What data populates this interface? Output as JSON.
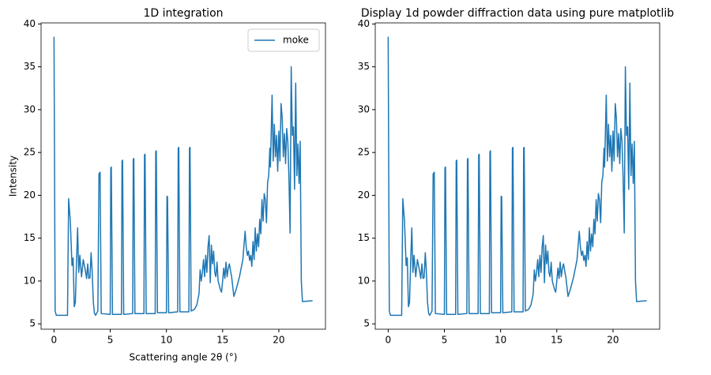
{
  "chart_data": [
    {
      "type": "line",
      "title": "1D integration",
      "xlabel": "Scattering angle 2θ (°)",
      "ylabel": "Intensity",
      "xlim": [
        -1.15,
        24.15
      ],
      "ylim": [
        4.375,
        40.125
      ],
      "xticks": [
        0,
        5,
        10,
        15,
        20
      ],
      "yticks": [
        5,
        10,
        15,
        20,
        25,
        30,
        35,
        40
      ],
      "legend": "upper right",
      "x": [
        0,
        0.1,
        0.2,
        1.2,
        1.3,
        1.45,
        1.6,
        1.7,
        1.8,
        1.9,
        2,
        2.1,
        2.2,
        2.3,
        2.45,
        2.6,
        2.75,
        2.9,
        3,
        3.1,
        3.2,
        3.3,
        3.4,
        3.5,
        3.6,
        3.7,
        3.9,
        4,
        4.1,
        4.2,
        5,
        5.05,
        5.1,
        5.2,
        6,
        6.05,
        6.1,
        6.2,
        7,
        7.05,
        7.1,
        7.2,
        8,
        8.05,
        8.1,
        8.2,
        9,
        9.05,
        9.1,
        9.2,
        10,
        10.05,
        10.1,
        10.2,
        11,
        11.05,
        11.1,
        11.2,
        12,
        12.05,
        12.1,
        12.2,
        12.5,
        12.7,
        12.9,
        13,
        13.1,
        13.2,
        13.3,
        13.4,
        13.5,
        13.6,
        13.7,
        13.8,
        13.9,
        14,
        14.1,
        14.2,
        14.3,
        14.4,
        14.5,
        14.6,
        14.7,
        14.8,
        14.9,
        15,
        15.1,
        15.2,
        15.3,
        15.4,
        15.5,
        15.6,
        15.7,
        15.8,
        16,
        16.2,
        16.5,
        16.8,
        17,
        17.1,
        17.2,
        17.3,
        17.4,
        17.5,
        17.6,
        17.7,
        17.8,
        17.9,
        18,
        18.1,
        18.2,
        18.3,
        18.4,
        18.5,
        18.6,
        18.7,
        18.8,
        18.9,
        19,
        19.1,
        19.2,
        19.25,
        19.3,
        19.4,
        19.5,
        19.6,
        19.7,
        19.8,
        19.9,
        20,
        20.1,
        20.2,
        20.3,
        20.4,
        20.5,
        20.6,
        20.7,
        20.8,
        20.9,
        21,
        21.1,
        21.2,
        21.3,
        21.4,
        21.5,
        21.6,
        21.7,
        21.8,
        21.9,
        22,
        22.1,
        23
      ],
      "series": [
        {
          "name": "moke",
          "color": "#1f77b4",
          "values": [
            38.5,
            6.5,
            6,
            6,
            19.6,
            17,
            11.8,
            12.7,
            7,
            7.5,
            12.2,
            16.2,
            11,
            13,
            10.5,
            12.5,
            11.5,
            10.3,
            12,
            10.3,
            10.4,
            13.3,
            11,
            7.5,
            6.2,
            6,
            6.5,
            22.5,
            22.7,
            6.2,
            6.1,
            23.2,
            23.3,
            6.1,
            6.1,
            24,
            24.1,
            6.1,
            6.2,
            24.2,
            24.3,
            6.2,
            6.2,
            24.7,
            24.8,
            6.2,
            6.2,
            25.1,
            25.2,
            6.3,
            6.3,
            19.9,
            19.8,
            6.3,
            6.4,
            25.5,
            25.6,
            6.4,
            6.4,
            25.5,
            25.6,
            6.5,
            6.7,
            7.2,
            8.5,
            11.3,
            10,
            11,
            12.5,
            10.5,
            13,
            11,
            14,
            15.3,
            9.8,
            14.2,
            12,
            13.5,
            11,
            10.5,
            12.2,
            10,
            9.5,
            9,
            8.7,
            10,
            11.5,
            10.3,
            12.2,
            10.5,
            11.5,
            12,
            11.2,
            10.5,
            8.2,
            9,
            10.5,
            12.5,
            15.8,
            14,
            13,
            13.5,
            12.4,
            13,
            11.7,
            14.6,
            12.5,
            16.2,
            13.5,
            15.5,
            14,
            17.2,
            15.5,
            19.5,
            17,
            20.2,
            19.5,
            16.8,
            21.5,
            22.3,
            25.5,
            23.3,
            26,
            31.7,
            24,
            28.3,
            24.5,
            27,
            22.8,
            27.5,
            24,
            30.7,
            29,
            24.5,
            27.2,
            23.7,
            27.8,
            26.3,
            22.1,
            15.6,
            35,
            27,
            28,
            20.7,
            33.1,
            22.3,
            26,
            21.4,
            26.3,
            10,
            7.6,
            7.7
          ]
        }
      ]
    },
    {
      "type": "line",
      "title": "Display 1d powder diffraction data using pure matplotlib",
      "xlim": [
        -1.15,
        24.15
      ],
      "ylim": [
        4.375,
        40.125
      ],
      "xticks": [
        0,
        5,
        10,
        15,
        20
      ],
      "yticks": [
        5,
        10,
        15,
        20,
        25,
        30,
        35,
        40
      ],
      "x": [
        0,
        0.1,
        0.2,
        1.2,
        1.3,
        1.45,
        1.6,
        1.7,
        1.8,
        1.9,
        2,
        2.1,
        2.2,
        2.3,
        2.45,
        2.6,
        2.75,
        2.9,
        3,
        3.1,
        3.2,
        3.3,
        3.4,
        3.5,
        3.6,
        3.7,
        3.9,
        4,
        4.1,
        4.2,
        5,
        5.05,
        5.1,
        5.2,
        6,
        6.05,
        6.1,
        6.2,
        7,
        7.05,
        7.1,
        7.2,
        8,
        8.05,
        8.1,
        8.2,
        9,
        9.05,
        9.1,
        9.2,
        10,
        10.05,
        10.1,
        10.2,
        11,
        11.05,
        11.1,
        11.2,
        12,
        12.05,
        12.1,
        12.2,
        12.5,
        12.7,
        12.9,
        13,
        13.1,
        13.2,
        13.3,
        13.4,
        13.5,
        13.6,
        13.7,
        13.8,
        13.9,
        14,
        14.1,
        14.2,
        14.3,
        14.4,
        14.5,
        14.6,
        14.7,
        14.8,
        14.9,
        15,
        15.1,
        15.2,
        15.3,
        15.4,
        15.5,
        15.6,
        15.7,
        15.8,
        16,
        16.2,
        16.5,
        16.8,
        17,
        17.1,
        17.2,
        17.3,
        17.4,
        17.5,
        17.6,
        17.7,
        17.8,
        17.9,
        18,
        18.1,
        18.2,
        18.3,
        18.4,
        18.5,
        18.6,
        18.7,
        18.8,
        18.9,
        19,
        19.1,
        19.2,
        19.25,
        19.3,
        19.4,
        19.5,
        19.6,
        19.7,
        19.8,
        19.9,
        20,
        20.1,
        20.2,
        20.3,
        20.4,
        20.5,
        20.6,
        20.7,
        20.8,
        20.9,
        21,
        21.1,
        21.2,
        21.3,
        21.4,
        21.5,
        21.6,
        21.7,
        21.8,
        21.9,
        22,
        22.1,
        23
      ],
      "series": [
        {
          "color": "#1f77b4",
          "values": [
            38.5,
            6.5,
            6,
            6,
            19.6,
            17,
            11.8,
            12.7,
            7,
            7.5,
            12.2,
            16.2,
            11,
            13,
            10.5,
            12.5,
            11.5,
            10.3,
            12,
            10.3,
            10.4,
            13.3,
            11,
            7.5,
            6.2,
            6,
            6.5,
            22.5,
            22.7,
            6.2,
            6.1,
            23.2,
            23.3,
            6.1,
            6.1,
            24,
            24.1,
            6.1,
            6.2,
            24.2,
            24.3,
            6.2,
            6.2,
            24.7,
            24.8,
            6.2,
            6.2,
            25.1,
            25.2,
            6.3,
            6.3,
            19.9,
            19.8,
            6.3,
            6.4,
            25.5,
            25.6,
            6.4,
            6.4,
            25.5,
            25.6,
            6.5,
            6.7,
            7.2,
            8.5,
            11.3,
            10,
            11,
            12.5,
            10.5,
            13,
            11,
            14,
            15.3,
            9.8,
            14.2,
            12,
            13.5,
            11,
            10.5,
            12.2,
            10,
            9.5,
            9,
            8.7,
            10,
            11.5,
            10.3,
            12.2,
            10.5,
            11.5,
            12,
            11.2,
            10.5,
            8.2,
            9,
            10.5,
            12.5,
            15.8,
            14,
            13,
            13.5,
            12.4,
            13,
            11.7,
            14.6,
            12.5,
            16.2,
            13.5,
            15.5,
            14,
            17.2,
            15.5,
            19.5,
            17,
            20.2,
            19.5,
            16.8,
            21.5,
            22.3,
            25.5,
            23.3,
            26,
            31.7,
            24,
            28.3,
            24.5,
            27,
            22.8,
            27.5,
            24,
            30.7,
            29,
            24.5,
            27.2,
            23.7,
            27.8,
            26.3,
            22.1,
            15.6,
            35,
            27,
            28,
            20.7,
            33.1,
            22.3,
            26,
            21.4,
            26.3,
            10,
            7.6,
            7.7
          ]
        }
      ]
    }
  ]
}
